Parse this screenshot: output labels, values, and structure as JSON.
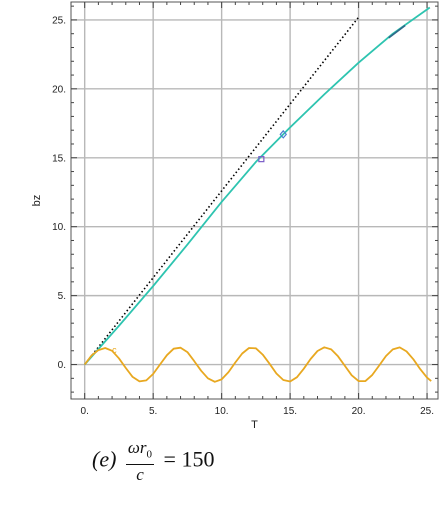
{
  "chart_data": {
    "type": "line",
    "title": "",
    "xlabel": "T",
    "ylabel": "bz",
    "xlim": [
      -1.0,
      25.8
    ],
    "ylim": [
      -2.5,
      26.3
    ],
    "grid": true,
    "x_ticks": [
      0,
      5,
      10,
      15,
      20,
      25
    ],
    "x_tick_labels": [
      "0.",
      "5.",
      "10.",
      "15.",
      "20.",
      "25."
    ],
    "y_ticks": [
      0,
      5,
      10,
      15,
      20,
      25
    ],
    "y_tick_labels": [
      "0.",
      "5.",
      "10.",
      "15.",
      "20.",
      "25."
    ],
    "series": [
      {
        "style": "dotted",
        "color": "#000000",
        "x": [
          0,
          20
        ],
        "y": [
          0,
          25.2
        ]
      },
      {
        "style": "solid",
        "color": "#2ec4b0",
        "x": [
          0,
          2.5,
          5,
          7.5,
          10,
          12.5,
          15,
          17.5,
          20,
          22.5,
          25.2
        ],
        "y": [
          0,
          2.8,
          5.7,
          8.7,
          11.8,
          14.7,
          17.2,
          19.6,
          21.9,
          24.0,
          25.9
        ]
      },
      {
        "style": "solid",
        "color": "#e8a820",
        "x": [
          0,
          0.5,
          1.0,
          1.5,
          2.0,
          2.5,
          3.0,
          3.5,
          4.0,
          4.5,
          5.0,
          5.5,
          6.0,
          6.5,
          7.0,
          7.5,
          8.0,
          8.5,
          9.0,
          9.5,
          10.0,
          10.5,
          11.0,
          11.5,
          12.0,
          12.5,
          13.0,
          13.5,
          14.0,
          14.5,
          15.0,
          15.5,
          16.0,
          16.5,
          17.0,
          17.5,
          18.0,
          18.5,
          19.0,
          19.5,
          20.0,
          20.5,
          21.0,
          21.5,
          22.0,
          22.5,
          23.0,
          23.5,
          24.0,
          24.5,
          25.0,
          25.3
        ],
        "y": [
          0,
          0.65,
          1.05,
          1.2,
          1.0,
          0.45,
          -0.25,
          -0.9,
          -1.22,
          -1.15,
          -0.68,
          0,
          0.68,
          1.15,
          1.22,
          0.9,
          0.25,
          -0.45,
          -1.0,
          -1.25,
          -1.08,
          -0.55,
          0.15,
          0.8,
          1.2,
          1.18,
          0.72,
          0.05,
          -0.65,
          -1.12,
          -1.23,
          -0.92,
          -0.3,
          0.4,
          0.98,
          1.25,
          1.1,
          0.6,
          -0.1,
          -0.78,
          -1.2,
          -1.2,
          -0.75,
          -0.08,
          0.62,
          1.1,
          1.24,
          0.95,
          0.38,
          -0.33,
          -0.95,
          -1.2
        ]
      }
    ],
    "annotations": [
      {
        "text": "c",
        "x": 2.0,
        "y": 1.05,
        "color": "#e8a820"
      }
    ],
    "markers": [
      {
        "x": 12.9,
        "y": 14.9,
        "color": "#7a5cc8",
        "shape": "square"
      },
      {
        "x": 14.5,
        "y": 16.7,
        "color": "#4a7fd0",
        "shape": "diamond"
      }
    ]
  },
  "caption": {
    "prefix": "(e)",
    "numerator": "ωr",
    "numerator_sub": "0",
    "denominator": "c",
    "suffix": "= 150"
  }
}
